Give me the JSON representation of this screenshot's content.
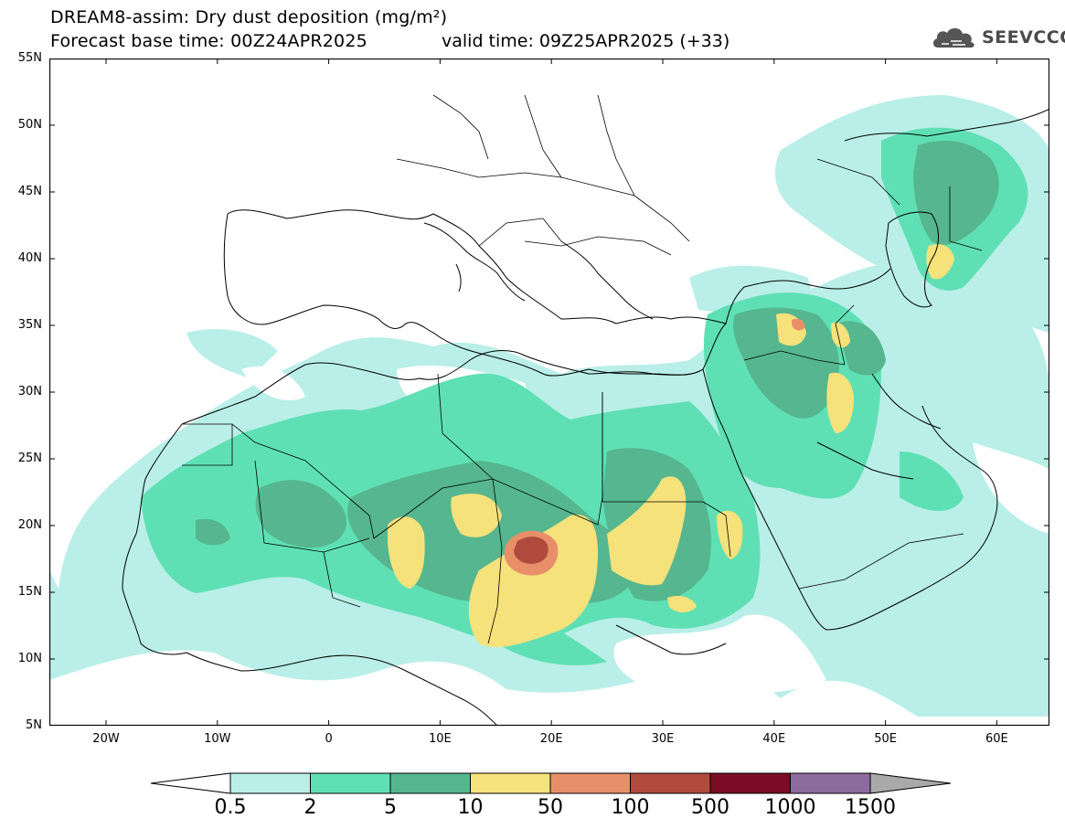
{
  "header": {
    "title_line1": "DREAM8-assim: Dry dust deposition (mg/m²)",
    "title_line2": "Forecast base time: 00Z24APR2025",
    "valid_time": "valid time: 09Z25APR2025 (+33)"
  },
  "logo": {
    "text": "SEEVCCC",
    "icon": "cloud-logo-icon"
  },
  "axes": {
    "lat_ticks": [
      "55N",
      "50N",
      "45N",
      "40N",
      "35N",
      "30N",
      "25N",
      "20N",
      "15N",
      "10N",
      "5N"
    ],
    "lon_ticks": [
      "20W",
      "10W",
      "0",
      "10E",
      "20E",
      "30E",
      "40E",
      "50E",
      "60E"
    ]
  },
  "colorbar": {
    "labels": [
      "0.5",
      "2",
      "5",
      "10",
      "50",
      "100",
      "500",
      "1000",
      "1500"
    ],
    "colors": [
      "#b9efe8",
      "#5fe0b4",
      "#55b68f",
      "#f6e27a",
      "#e88f6a",
      "#b04a3d",
      "#7c0c25",
      "#8e6b9e"
    ],
    "under_color": "#ffffff",
    "over_color": "#a9a9a9"
  },
  "map_colors": {
    "land_line": "#000000",
    "background": "#ffffff"
  }
}
